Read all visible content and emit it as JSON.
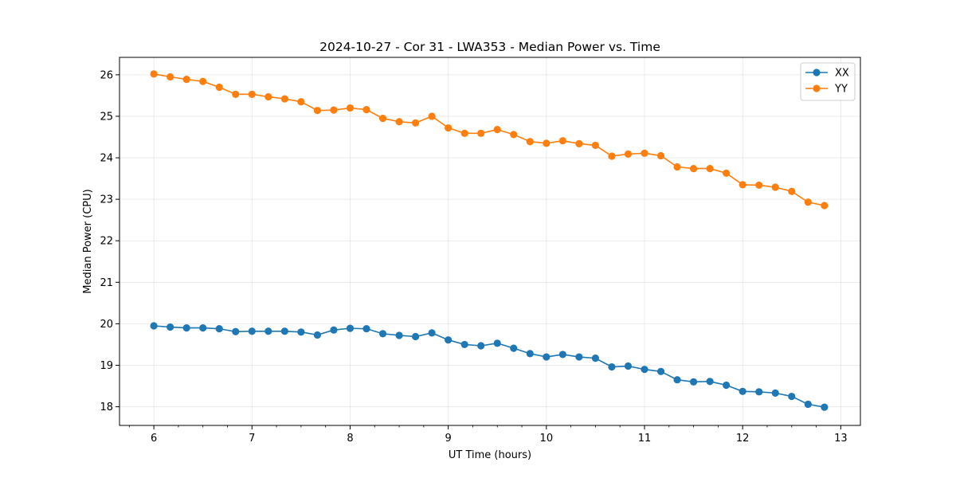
{
  "chart_data": {
    "type": "line",
    "title": "2024-10-27 - Cor 31 - LWA353 - Median Power vs. Time",
    "xlabel": "UT Time (hours)",
    "ylabel": "Median Power (CPU)",
    "xlim": [
      5.65,
      13.2
    ],
    "ylim": [
      17.55,
      26.42
    ],
    "xticks": [
      6,
      7,
      8,
      9,
      10,
      11,
      12,
      13
    ],
    "yticks": [
      18,
      19,
      20,
      21,
      22,
      23,
      24,
      25,
      26
    ],
    "grid": true,
    "legend_position": "top-right",
    "x": [
      6.0,
      6.1667,
      6.3333,
      6.5,
      6.6667,
      6.8333,
      7.0,
      7.1667,
      7.3333,
      7.5,
      7.6667,
      7.8333,
      8.0,
      8.1667,
      8.3333,
      8.5,
      8.6667,
      8.8333,
      9.0,
      9.1667,
      9.3333,
      9.5,
      9.6667,
      9.8333,
      10.0,
      10.1667,
      10.3333,
      10.5,
      10.6667,
      10.8333,
      11.0,
      11.1667,
      11.3333,
      11.5,
      11.6667,
      11.8333,
      12.0,
      12.1667,
      12.3333,
      12.5,
      12.6667,
      12.8333
    ],
    "series": [
      {
        "name": "XX",
        "color": "#1f77b4",
        "values": [
          19.95,
          19.92,
          19.9,
          19.9,
          19.88,
          19.81,
          19.82,
          19.82,
          19.82,
          19.8,
          19.73,
          19.85,
          19.89,
          19.88,
          19.76,
          19.72,
          19.69,
          19.78,
          19.61,
          19.5,
          19.47,
          19.53,
          19.41,
          19.28,
          19.2,
          19.26,
          19.2,
          19.17,
          18.96,
          18.98,
          18.9,
          18.85,
          18.65,
          18.6,
          18.61,
          18.52,
          18.37,
          18.36,
          18.33,
          18.25,
          18.06,
          17.99
        ]
      },
      {
        "name": "YY",
        "color": "#ff7f0e",
        "values": [
          26.02,
          25.95,
          25.89,
          25.84,
          25.7,
          25.53,
          25.53,
          25.47,
          25.42,
          25.35,
          25.14,
          25.15,
          25.2,
          25.16,
          24.95,
          24.87,
          24.84,
          25.0,
          24.72,
          24.59,
          24.59,
          24.68,
          24.56,
          24.39,
          24.35,
          24.41,
          24.34,
          24.3,
          24.04,
          24.09,
          24.11,
          24.05,
          23.78,
          23.74,
          23.74,
          23.63,
          23.35,
          23.34,
          23.29,
          23.19,
          22.93,
          22.85
        ]
      }
    ]
  }
}
